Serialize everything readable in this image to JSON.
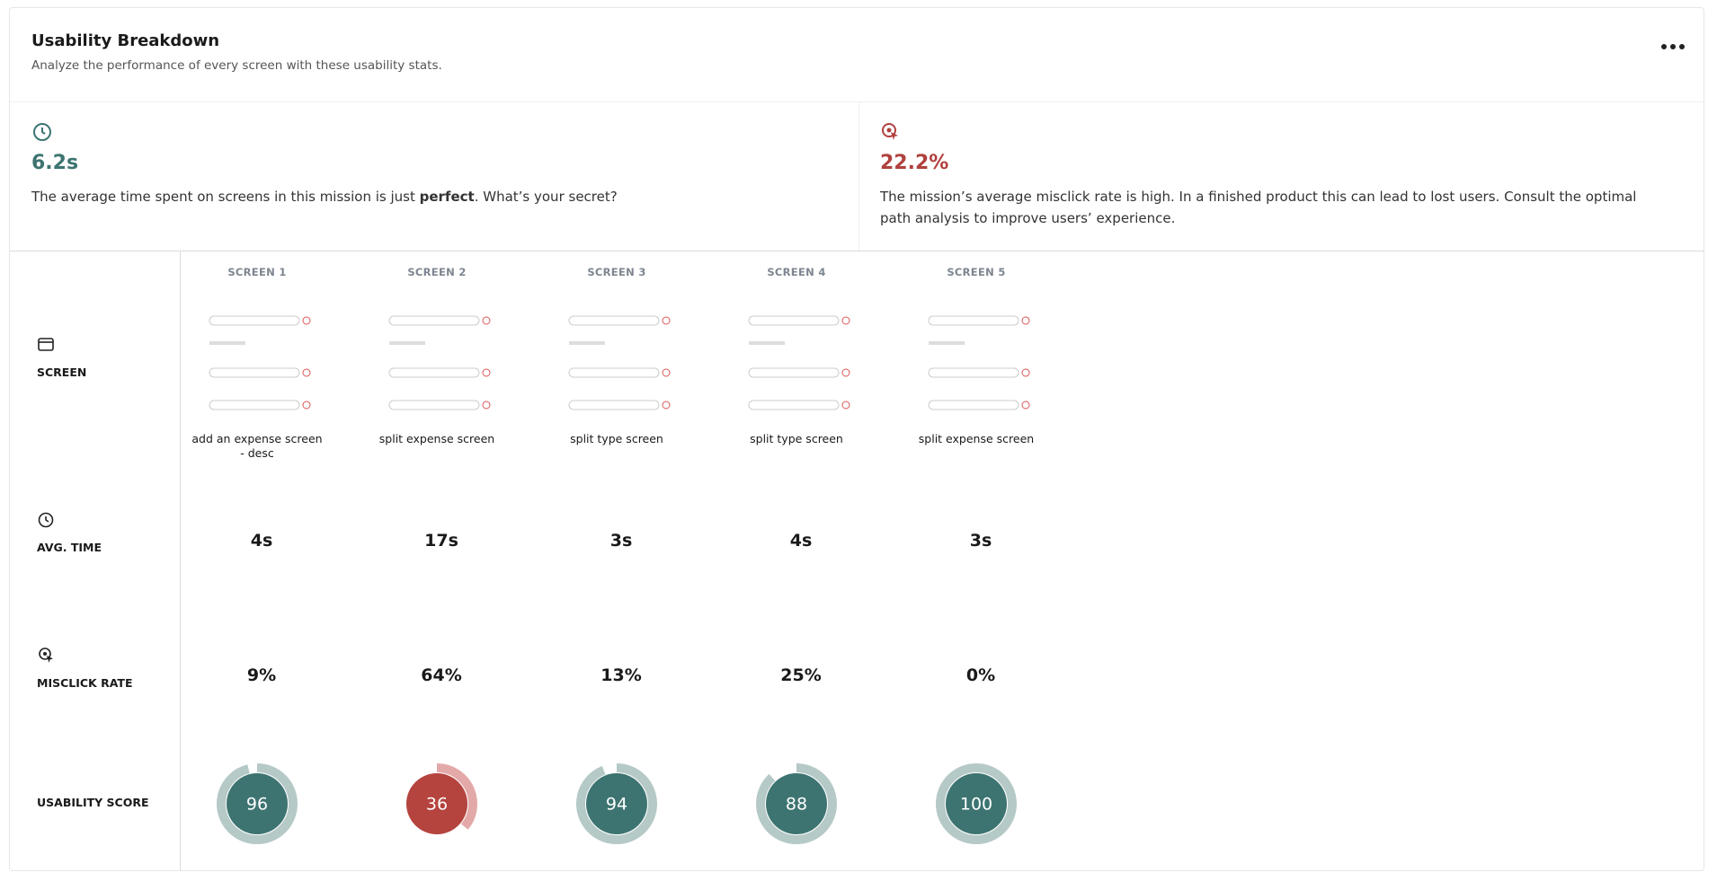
{
  "header": {
    "title": "Usability Breakdown",
    "subtitle": "Analyze the performance of every screen with these usability stats."
  },
  "stats": {
    "avg_time": {
      "value": "6.2s",
      "text_before": "The average time spent on screens in this mission is just ",
      "text_bold": "perfect",
      "text_after": ". What’s your secret?"
    },
    "misclick": {
      "value": "22.2%",
      "text": "The mission’s average misclick rate is high. In a finished product this can lead to lost users. Consult the optimal path analysis to improve users’ experience."
    }
  },
  "row_labels": [
    "SCREEN",
    "AVG. TIME",
    "MISCLICK RATE",
    "USABILITY SCORE"
  ],
  "screens": [
    {
      "label": "SCREEN 1",
      "name": "add an expense screen - desc",
      "avg_time": "4s",
      "misclick_rate": "9%",
      "usability_score": 96
    },
    {
      "label": "SCREEN 2",
      "name": "split expense screen",
      "avg_time": "17s",
      "misclick_rate": "64%",
      "usability_score": 36
    },
    {
      "label": "SCREEN 3",
      "name": "split type screen",
      "avg_time": "3s",
      "misclick_rate": "13%",
      "usability_score": 94
    },
    {
      "label": "SCREEN 4",
      "name": "split type screen",
      "avg_time": "4s",
      "misclick_rate": "25%",
      "usability_score": 88
    },
    {
      "label": "SCREEN 5",
      "name": "split expense screen",
      "avg_time": "3s",
      "misclick_rate": "0%",
      "usability_score": 100
    }
  ]
}
